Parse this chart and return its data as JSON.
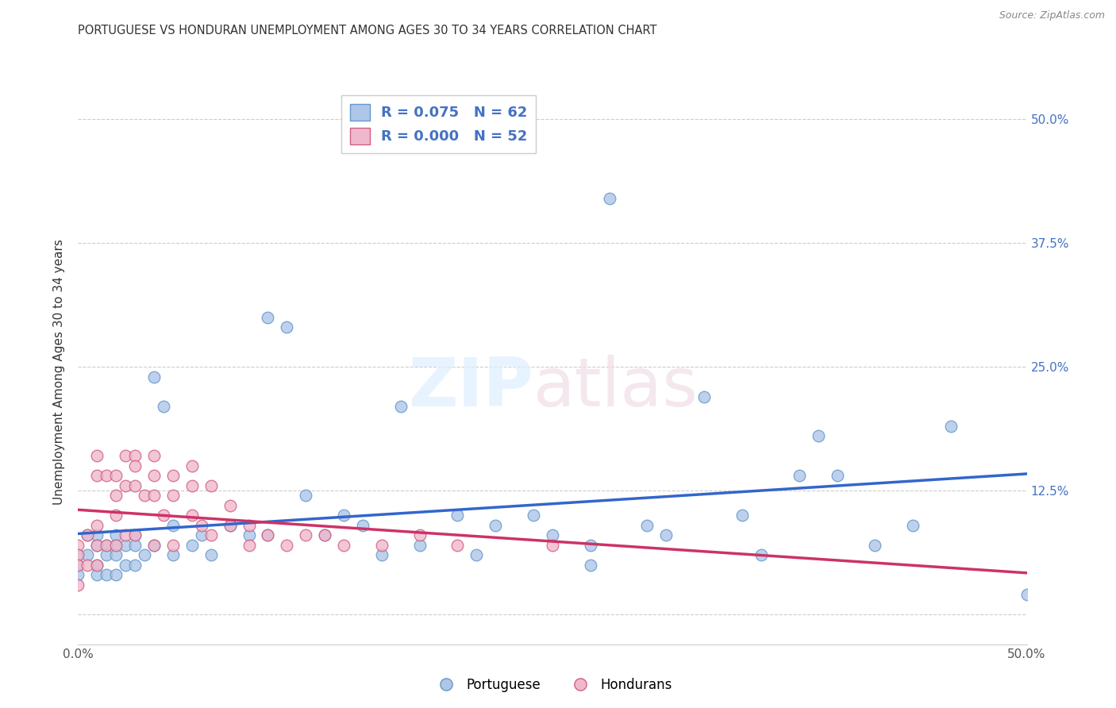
{
  "title": "PORTUGUESE VS HONDURAN UNEMPLOYMENT AMONG AGES 30 TO 34 YEARS CORRELATION CHART",
  "source": "Source: ZipAtlas.com",
  "ylabel": "Unemployment Among Ages 30 to 34 years",
  "xlim": [
    0.0,
    0.5
  ],
  "ylim": [
    -0.03,
    0.52
  ],
  "xticks": [
    0.0,
    0.125,
    0.25,
    0.375,
    0.5
  ],
  "xticklabels": [
    "0.0%",
    "",
    "",
    "",
    "50.0%"
  ],
  "yticks": [
    0.0,
    0.125,
    0.25,
    0.375,
    0.5
  ],
  "yticklabels": [
    "",
    "12.5%",
    "25.0%",
    "37.5%",
    "50.0%"
  ],
  "portuguese_color": "#aec6e8",
  "honduran_color": "#f0b8cc",
  "portuguese_edge": "#6699cc",
  "honduran_edge": "#d06080",
  "R_portuguese": 0.075,
  "N_portuguese": 62,
  "R_honduran": 0.0,
  "N_honduran": 52,
  "blue_line_color": "#3366cc",
  "red_line_color": "#cc3366",
  "portuguese_x": [
    0.0,
    0.0,
    0.0,
    0.005,
    0.005,
    0.01,
    0.01,
    0.01,
    0.01,
    0.015,
    0.015,
    0.015,
    0.02,
    0.02,
    0.02,
    0.02,
    0.025,
    0.025,
    0.03,
    0.03,
    0.03,
    0.035,
    0.04,
    0.04,
    0.045,
    0.05,
    0.05,
    0.06,
    0.065,
    0.07,
    0.08,
    0.09,
    0.1,
    0.1,
    0.11,
    0.12,
    0.13,
    0.14,
    0.15,
    0.16,
    0.17,
    0.18,
    0.2,
    0.21,
    0.22,
    0.24,
    0.25,
    0.27,
    0.27,
    0.28,
    0.3,
    0.31,
    0.33,
    0.35,
    0.36,
    0.38,
    0.39,
    0.4,
    0.42,
    0.44,
    0.46,
    0.5
  ],
  "portuguese_y": [
    0.06,
    0.05,
    0.04,
    0.08,
    0.06,
    0.08,
    0.07,
    0.05,
    0.04,
    0.07,
    0.06,
    0.04,
    0.08,
    0.07,
    0.06,
    0.04,
    0.07,
    0.05,
    0.08,
    0.07,
    0.05,
    0.06,
    0.24,
    0.07,
    0.21,
    0.09,
    0.06,
    0.07,
    0.08,
    0.06,
    0.09,
    0.08,
    0.3,
    0.08,
    0.29,
    0.12,
    0.08,
    0.1,
    0.09,
    0.06,
    0.21,
    0.07,
    0.1,
    0.06,
    0.09,
    0.1,
    0.08,
    0.07,
    0.05,
    0.42,
    0.09,
    0.08,
    0.22,
    0.1,
    0.06,
    0.14,
    0.18,
    0.14,
    0.07,
    0.09,
    0.19,
    0.02
  ],
  "honduran_x": [
    0.0,
    0.0,
    0.0,
    0.0,
    0.005,
    0.005,
    0.01,
    0.01,
    0.01,
    0.01,
    0.01,
    0.015,
    0.015,
    0.02,
    0.02,
    0.02,
    0.02,
    0.025,
    0.025,
    0.025,
    0.03,
    0.03,
    0.03,
    0.03,
    0.035,
    0.04,
    0.04,
    0.04,
    0.04,
    0.045,
    0.05,
    0.05,
    0.05,
    0.06,
    0.06,
    0.06,
    0.065,
    0.07,
    0.07,
    0.08,
    0.08,
    0.09,
    0.09,
    0.1,
    0.11,
    0.12,
    0.13,
    0.14,
    0.16,
    0.18,
    0.2,
    0.25
  ],
  "honduran_y": [
    0.07,
    0.06,
    0.05,
    0.03,
    0.08,
    0.05,
    0.16,
    0.14,
    0.09,
    0.07,
    0.05,
    0.14,
    0.07,
    0.14,
    0.12,
    0.1,
    0.07,
    0.16,
    0.13,
    0.08,
    0.16,
    0.15,
    0.13,
    0.08,
    0.12,
    0.16,
    0.14,
    0.12,
    0.07,
    0.1,
    0.14,
    0.12,
    0.07,
    0.15,
    0.13,
    0.1,
    0.09,
    0.13,
    0.08,
    0.11,
    0.09,
    0.09,
    0.07,
    0.08,
    0.07,
    0.08,
    0.08,
    0.07,
    0.07,
    0.08,
    0.07,
    0.07
  ],
  "title_fontsize": 10.5,
  "ylabel_fontsize": 11,
  "tick_fontsize": 11,
  "legend_fontsize": 13,
  "background_color": "#ffffff",
  "grid_color": "#cccccc"
}
